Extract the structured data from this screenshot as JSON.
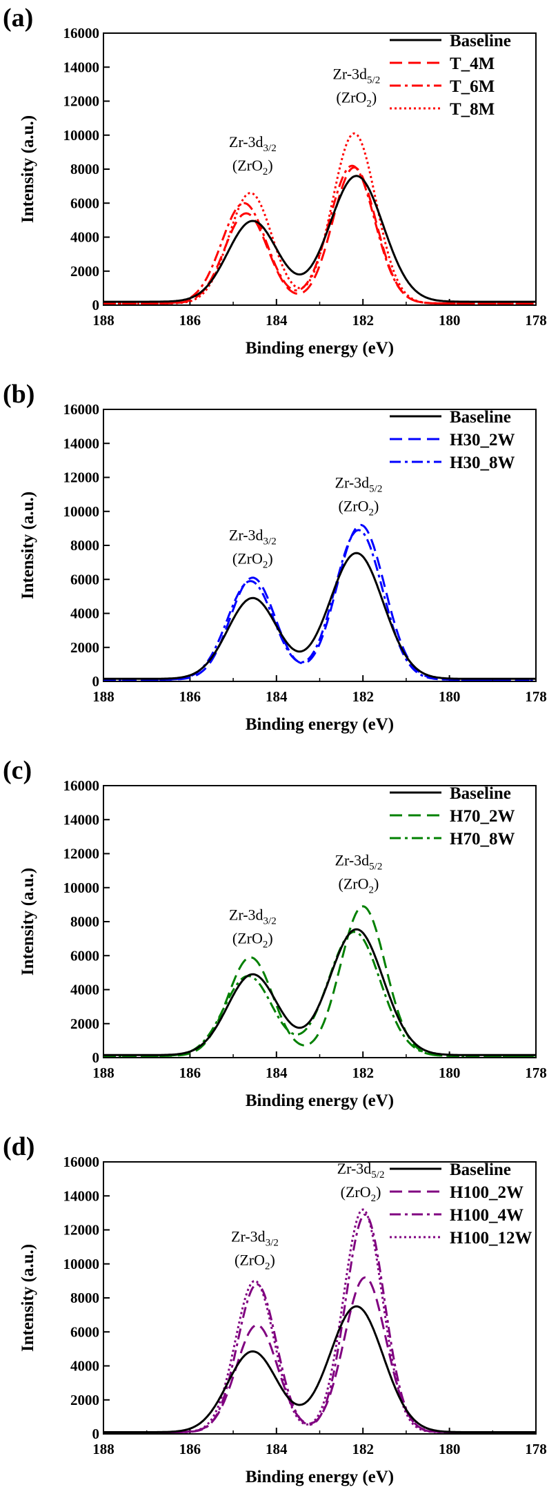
{
  "chart_data": [
    {
      "type": "line",
      "panel_label": "(a)",
      "xlabel": "Binding energy (eV)",
      "ylabel": "Intensity (a.u.)",
      "xlim": [
        188,
        178
      ],
      "ylim": [
        0,
        16000
      ],
      "x_ticks": [
        "188",
        "186",
        "184",
        "182",
        "180",
        "178"
      ],
      "y_ticks": [
        "0",
        "2000",
        "4000",
        "6000",
        "8000",
        "10000",
        "12000",
        "14000",
        "16000"
      ],
      "legend_position": "top-right",
      "annotations": [
        {
          "base": "Zr-3d",
          "sub": "3/2",
          "line2a": "(ZrO",
          "line2sub": "2",
          "line2b": ")",
          "x": 184.55,
          "y_top": 9300
        },
        {
          "base": "Zr-3d",
          "sub": "5/2",
          "line2a": "(ZrO",
          "line2sub": "2",
          "line2b": ")",
          "x": 182.15,
          "y_top": 13300
        }
      ],
      "series": [
        {
          "name": "Baseline",
          "color": "#000000",
          "style": "solid",
          "peaks": [
            {
              "center": 184.55,
              "height": 4750,
              "sigma": 0.58
            },
            {
              "center": 182.15,
              "height": 7400,
              "sigma": 0.62
            }
          ],
          "background": 200
        },
        {
          "name": "T_4M",
          "color": "#ff0000",
          "style": "dash",
          "peaks": [
            {
              "center": 184.7,
              "height": 5300,
              "sigma": 0.5
            },
            {
              "center": 182.2,
              "height": 8000,
              "sigma": 0.5
            }
          ],
          "background": 100
        },
        {
          "name": "T_6M",
          "color": "#ff0000",
          "style": "dashdot",
          "peaks": [
            {
              "center": 184.75,
              "height": 5900,
              "sigma": 0.52
            },
            {
              "center": 182.25,
              "height": 8100,
              "sigma": 0.52
            }
          ],
          "background": 100
        },
        {
          "name": "T_8M",
          "color": "#ff0000",
          "style": "dot",
          "peaks": [
            {
              "center": 184.6,
              "height": 6500,
              "sigma": 0.5
            },
            {
              "center": 182.2,
              "height": 10000,
              "sigma": 0.5
            }
          ],
          "background": 100
        }
      ]
    },
    {
      "type": "line",
      "panel_label": "(b)",
      "xlabel": "Binding energy (eV)",
      "ylabel": "Intensity (a.u.)",
      "xlim": [
        188,
        178
      ],
      "ylim": [
        0,
        16000
      ],
      "x_ticks": [
        "188",
        "186",
        "184",
        "182",
        "180",
        "178"
      ],
      "y_ticks": [
        "0",
        "2000",
        "4000",
        "6000",
        "8000",
        "10000",
        "12000",
        "14000",
        "16000"
      ],
      "legend_position": "top-right",
      "annotations": [
        {
          "base": "Zr-3d",
          "sub": "3/2",
          "line2a": "(ZrO",
          "line2sub": "2",
          "line2b": ")",
          "x": 184.55,
          "y_top": 8300
        },
        {
          "base": "Zr-3d",
          "sub": "5/2",
          "line2a": "(ZrO",
          "line2sub": "2",
          "line2b": ")",
          "x": 182.1,
          "y_top": 11400
        }
      ],
      "series": [
        {
          "name": "Baseline",
          "color": "#000000",
          "style": "solid",
          "peaks": [
            {
              "center": 184.55,
              "height": 4750,
              "sigma": 0.58
            },
            {
              "center": 182.15,
              "height": 7400,
              "sigma": 0.62
            }
          ],
          "background": 150
        },
        {
          "name": "H30_2W",
          "color": "#0000ff",
          "style": "dash",
          "peaks": [
            {
              "center": 184.55,
              "height": 6000,
              "sigma": 0.52
            },
            {
              "center": 182.05,
              "height": 9100,
              "sigma": 0.55
            }
          ],
          "background": 100
        },
        {
          "name": "H30_8W",
          "color": "#0000ff",
          "style": "dashdot",
          "peaks": [
            {
              "center": 184.6,
              "height": 5800,
              "sigma": 0.54
            },
            {
              "center": 182.1,
              "height": 8800,
              "sigma": 0.55
            }
          ],
          "background": 100
        }
      ]
    },
    {
      "type": "line",
      "panel_label": "(c)",
      "xlabel": "Binding energy (eV)",
      "ylabel": "Intensity (a.u.)",
      "xlim": [
        188,
        178
      ],
      "ylim": [
        0,
        16000
      ],
      "x_ticks": [
        "188",
        "186",
        "184",
        "182",
        "180",
        "178"
      ],
      "y_ticks": [
        "0",
        "2000",
        "4000",
        "6000",
        "8000",
        "10000",
        "12000",
        "14000",
        "16000"
      ],
      "legend_position": "top-right",
      "annotations": [
        {
          "base": "Zr-3d",
          "sub": "3/2",
          "line2a": "(ZrO",
          "line2sub": "2",
          "line2b": ")",
          "x": 184.55,
          "y_top": 8100
        },
        {
          "base": "Zr-3d",
          "sub": "5/2",
          "line2a": "(ZrO",
          "line2sub": "2",
          "line2b": ")",
          "x": 182.1,
          "y_top": 11300
        }
      ],
      "series": [
        {
          "name": "Baseline",
          "color": "#000000",
          "style": "solid",
          "peaks": [
            {
              "center": 184.55,
              "height": 4750,
              "sigma": 0.58
            },
            {
              "center": 182.15,
              "height": 7400,
              "sigma": 0.62
            }
          ],
          "background": 150
        },
        {
          "name": "H70_2W",
          "color": "#008000",
          "style": "dash",
          "peaks": [
            {
              "center": 184.6,
              "height": 5800,
              "sigma": 0.52
            },
            {
              "center": 182.0,
              "height": 8800,
              "sigma": 0.52
            }
          ],
          "background": 100
        },
        {
          "name": "H70_8W",
          "color": "#008000",
          "style": "dashdot",
          "peaks": [
            {
              "center": 184.65,
              "height": 4700,
              "sigma": 0.56
            },
            {
              "center": 182.2,
              "height": 7300,
              "sigma": 0.6
            }
          ],
          "background": 100
        }
      ]
    },
    {
      "type": "line",
      "panel_label": "(d)",
      "xlabel": "Binding energy (eV)",
      "ylabel": "Intensity (a.u.)",
      "xlim": [
        188,
        178
      ],
      "ylim": [
        0,
        16000
      ],
      "x_ticks": [
        "188",
        "186",
        "184",
        "182",
        "180",
        "178"
      ],
      "y_ticks": [
        "0",
        "2000",
        "4000",
        "6000",
        "8000",
        "10000",
        "12000",
        "14000",
        "16000"
      ],
      "legend_position": "top-right",
      "annotations": [
        {
          "base": "Zr-3d",
          "sub": "3/2",
          "line2a": "(ZrO",
          "line2sub": "2",
          "line2b": ")",
          "x": 184.5,
          "y_top": 11300
        },
        {
          "base": "Zr-3d",
          "sub": "5/2",
          "line2a": "(ZrO",
          "line2sub": "2",
          "line2b": ")",
          "x": 182.05,
          "y_top": 15300
        }
      ],
      "series": [
        {
          "name": "Baseline",
          "color": "#000000",
          "style": "solid",
          "peaks": [
            {
              "center": 184.55,
              "height": 4750,
              "sigma": 0.58
            },
            {
              "center": 182.15,
              "height": 7400,
              "sigma": 0.62
            }
          ],
          "background": 100
        },
        {
          "name": "H100_2W",
          "color": "#800080",
          "style": "dash",
          "peaks": [
            {
              "center": 184.45,
              "height": 6300,
              "sigma": 0.48
            },
            {
              "center": 181.95,
              "height": 9100,
              "sigma": 0.48
            }
          ],
          "background": 100
        },
        {
          "name": "H100_4W",
          "color": "#800080",
          "style": "dashdot",
          "peaks": [
            {
              "center": 184.45,
              "height": 8700,
              "sigma": 0.45
            },
            {
              "center": 181.95,
              "height": 12800,
              "sigma": 0.45
            }
          ],
          "background": 100
        },
        {
          "name": "H100_12W",
          "color": "#800080",
          "style": "dot",
          "peaks": [
            {
              "center": 184.5,
              "height": 8900,
              "sigma": 0.45
            },
            {
              "center": 182.0,
              "height": 13100,
              "sigma": 0.45
            }
          ],
          "background": 100
        }
      ]
    }
  ]
}
